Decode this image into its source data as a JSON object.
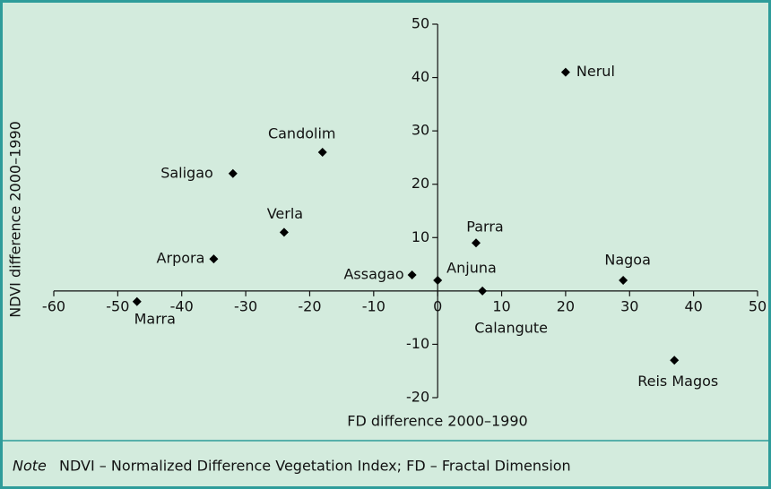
{
  "chart_data": {
    "type": "scatter",
    "xlabel": "FD difference 2000–1990",
    "ylabel": "NDVI difference 2000–1990",
    "note_label": "Note",
    "note": "NDVI – Normalized Difference Vegetation Index; FD – Fractal Dimension",
    "color": "#000000",
    "series": [
      {
        "names": [
          "Nerul",
          "Candolim",
          "Saligao",
          "Verla",
          "Arpora",
          "Parra",
          "Assagao",
          "Anjuna",
          "Nagoa",
          "Calangute",
          "Marra",
          "Reis Magos"
        ],
        "x": [
          20,
          -18,
          -32,
          -24,
          -35,
          6,
          -4,
          0,
          29,
          7,
          -47,
          37
        ],
        "values": [
          41,
          26,
          22,
          11,
          6,
          9,
          3,
          2,
          2,
          0,
          -2,
          -13
        ]
      }
    ],
    "xlim": [
      -60,
      50
    ],
    "xticks": [
      -60,
      -50,
      -40,
      -30,
      -20,
      -10,
      0,
      10,
      20,
      30,
      40,
      50
    ],
    "ylim": [
      -20,
      50
    ],
    "yticks": [
      -20,
      -10,
      10,
      20,
      30,
      40,
      50
    ]
  }
}
